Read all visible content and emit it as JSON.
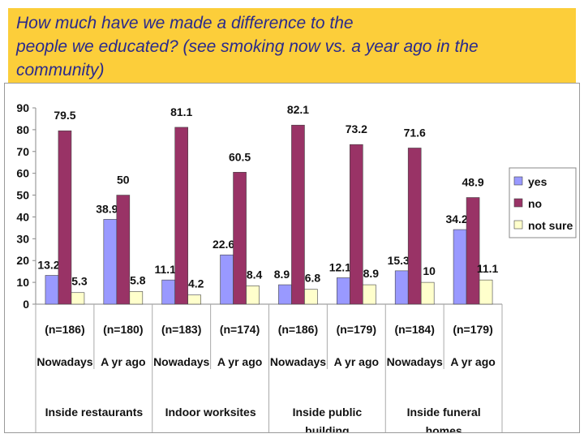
{
  "title": {
    "line1": "How much have we made a difference to the",
    "line2": "people we educated? (see smoking now vs. a year ago in the",
    "line3": "community)"
  },
  "colors": {
    "yes": "#9999ff",
    "no": "#993366",
    "not_sure": "#ffffcc",
    "title_bg": "#fcce3a",
    "title_text": "#2a2a8c"
  },
  "chart_data": {
    "type": "bar",
    "title": "",
    "xlabel": "",
    "ylabel": "",
    "ylim": [
      0,
      90
    ],
    "yticks": [
      "0",
      "10",
      "20",
      "30",
      "40",
      "50",
      "60",
      "70",
      "80",
      "90"
    ],
    "legend_position": "right",
    "categories": [
      {
        "n": "(n=186)",
        "period": "Nowadays"
      },
      {
        "n": "(n=180)",
        "period": "A yr ago"
      },
      {
        "n": "(n=183)",
        "period": "Nowadays"
      },
      {
        "n": "(n=174)",
        "period": "A yr ago"
      },
      {
        "n": "(n=186)",
        "period": "Nowadays"
      },
      {
        "n": "(n=179)",
        "period": "A yr ago"
      },
      {
        "n": "(n=184)",
        "period": "Nowadays"
      },
      {
        "n": "(n=179)",
        "period": "A yr ago"
      }
    ],
    "groups": [
      {
        "line1": "Inside restaurants",
        "line2": ""
      },
      {
        "line1": "Indoor worksites",
        "line2": ""
      },
      {
        "line1": "Inside public",
        "line2": "building"
      },
      {
        "line1": "Inside funeral",
        "line2": "homes"
      }
    ],
    "series": [
      {
        "key": "yes",
        "name": "yes",
        "values": [
          13.2,
          38.9,
          11.1,
          22.6,
          8.9,
          12.1,
          15.3,
          34.2
        ]
      },
      {
        "key": "no",
        "name": "no",
        "values": [
          79.5,
          50,
          81.1,
          60.5,
          82.1,
          73.2,
          71.6,
          48.9
        ]
      },
      {
        "key": "not_sure",
        "name": "not sure",
        "values": [
          5.3,
          5.8,
          4.2,
          8.4,
          6.8,
          8.9,
          10,
          11.1
        ]
      }
    ]
  }
}
